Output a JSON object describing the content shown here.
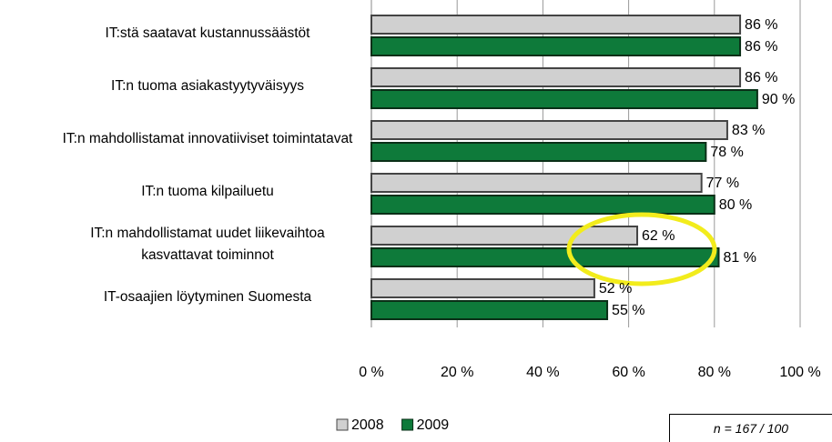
{
  "chart_data": {
    "type": "hbar",
    "categories": [
      "IT:stä saatavat kustannussäästöt",
      "IT:n tuoma asiakastyytyväisyys",
      "IT:n mahdollistamat innovatiiviset toimintatavat",
      "IT:n tuoma kilpailuetu",
      "IT:n mahdollistamat uudet liikevaihtoa kasvattavat toiminnot",
      "IT-osaajien löytyminen Suomesta"
    ],
    "series": [
      {
        "name": "2008",
        "color": "#d0d0d0",
        "values": [
          86,
          86,
          83,
          77,
          62,
          52
        ],
        "value_labels": [
          "86 %",
          "86 %",
          "83 %",
          "77 %",
          "62 %",
          "52 %"
        ]
      },
      {
        "name": "2009",
        "color": "#0e7a3a",
        "values": [
          86,
          90,
          78,
          80,
          81,
          55
        ],
        "value_labels": [
          "86 %",
          "90 %",
          "78 %",
          "80 %",
          "81 %",
          "55 %"
        ]
      }
    ],
    "xlim": [
      0,
      100
    ],
    "xticks": [
      {
        "value": 0,
        "label": "0 %"
      },
      {
        "value": 20,
        "label": "20 %"
      },
      {
        "value": 40,
        "label": "40 %"
      },
      {
        "value": 60,
        "label": "60 %"
      },
      {
        "value": 80,
        "label": "80 %"
      },
      {
        "value": 100,
        "label": "100 %"
      }
    ],
    "grid": true,
    "legend": "bottom",
    "annotation": "n = 167 / 100"
  }
}
